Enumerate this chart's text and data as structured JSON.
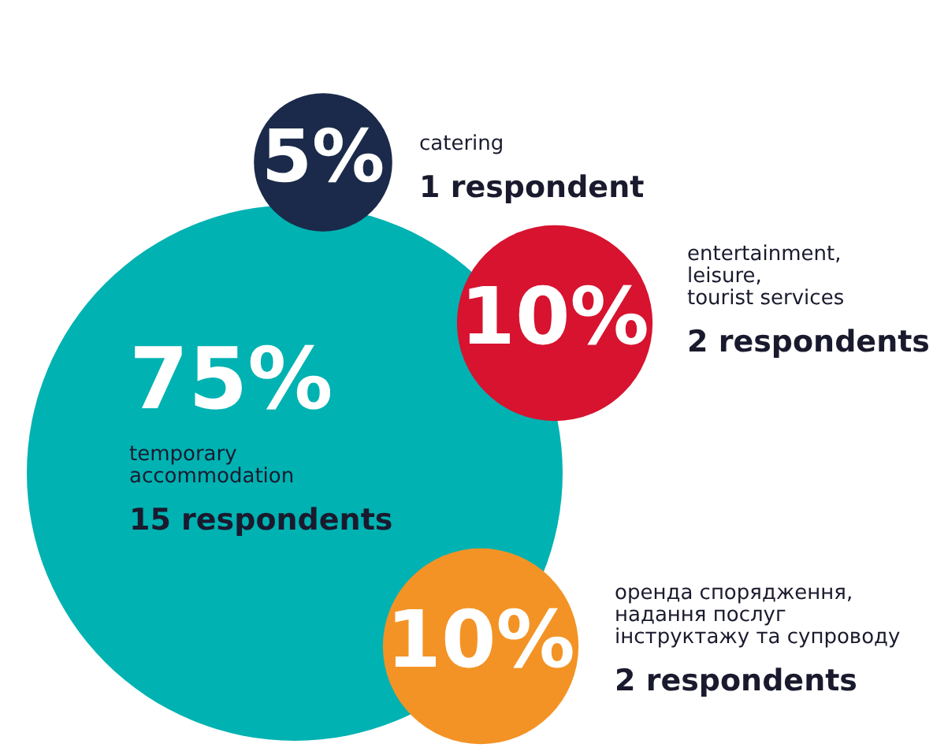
{
  "chart_data": {
    "type": "other",
    "categories": [
      "temporary\naccommodation",
      "catering",
      "entertainment,\nleisure,\ntourist services",
      "оренда спорядження,\nнадання послуг\nінструктажу та супроводу"
    ],
    "values": [
      75,
      5,
      10,
      10
    ],
    "value_labels": [
      "75%",
      "5%",
      "10%",
      "10%"
    ],
    "colors": [
      "#00b2b2",
      "#1b2a4a",
      "#d7132f",
      "#f39325"
    ],
    "annotations": [
      "15 respondents",
      "1 respondent",
      "2 respondents",
      "2 respondents"
    ]
  }
}
